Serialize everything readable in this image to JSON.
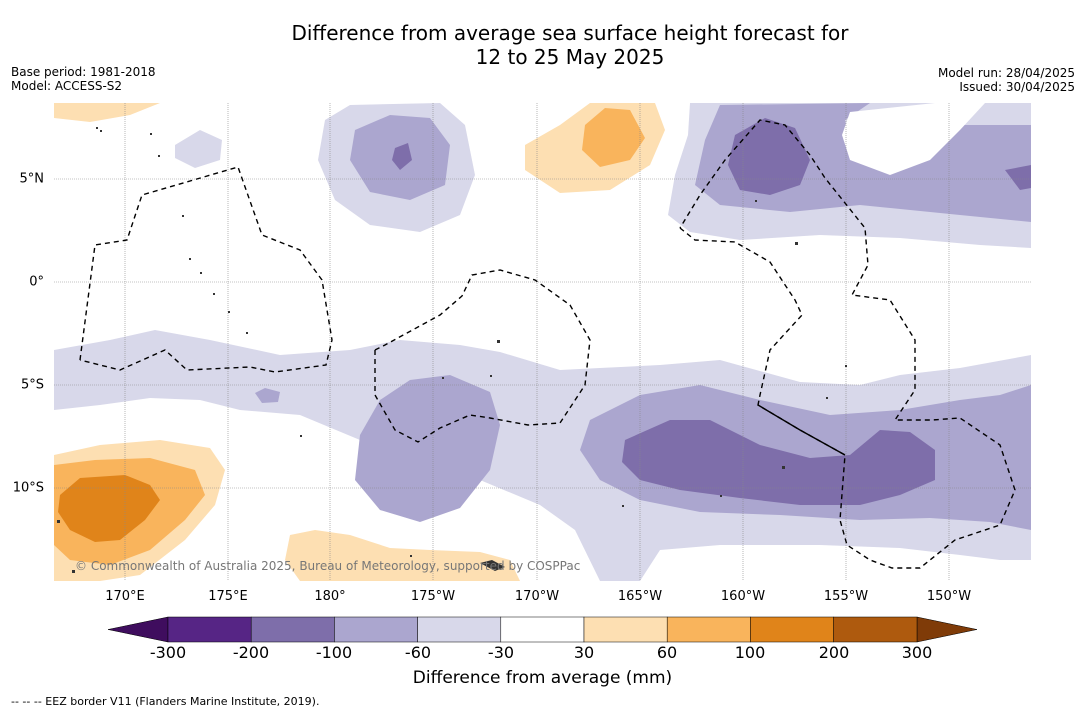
{
  "title_line1": "Difference from average sea surface height forecast for",
  "title_line2": "12 to 25 May 2025",
  "meta_left": {
    "base_period": "Base period: 1981-2018",
    "model": "Model: ACCESS-S2"
  },
  "meta_right": {
    "model_run": "Model run: 28/04/2025",
    "issued": "Issued: 30/04/2025"
  },
  "lon_labels": [
    "170°E",
    "175°E",
    "180°",
    "175°W",
    "170°W",
    "165°W",
    "160°W",
    "155°W",
    "150°W"
  ],
  "lat_labels": [
    "5°N",
    "0°",
    "5°S",
    "10°S"
  ],
  "copyright": "© Commonwealth of Australia 2025, Bureau of Meteorology, supported by COSPPac",
  "colorbar": {
    "ticks": [
      "-300",
      "-200",
      "-100",
      "-60",
      "-30",
      "30",
      "60",
      "100",
      "200",
      "300"
    ],
    "colors": [
      "#3f0d5e",
      "#562585",
      "#7e6eaa",
      "#aba6cf",
      "#d8d8ea",
      "#ffffff",
      "#fddfb2",
      "#f9b45c",
      "#e0841a",
      "#ae5a0e",
      "#7f3b08"
    ],
    "label": "Difference from average (mm)"
  },
  "footnote": "--  --  -- EEZ border V11 (Flanders Marine Institute, 2019)."
}
